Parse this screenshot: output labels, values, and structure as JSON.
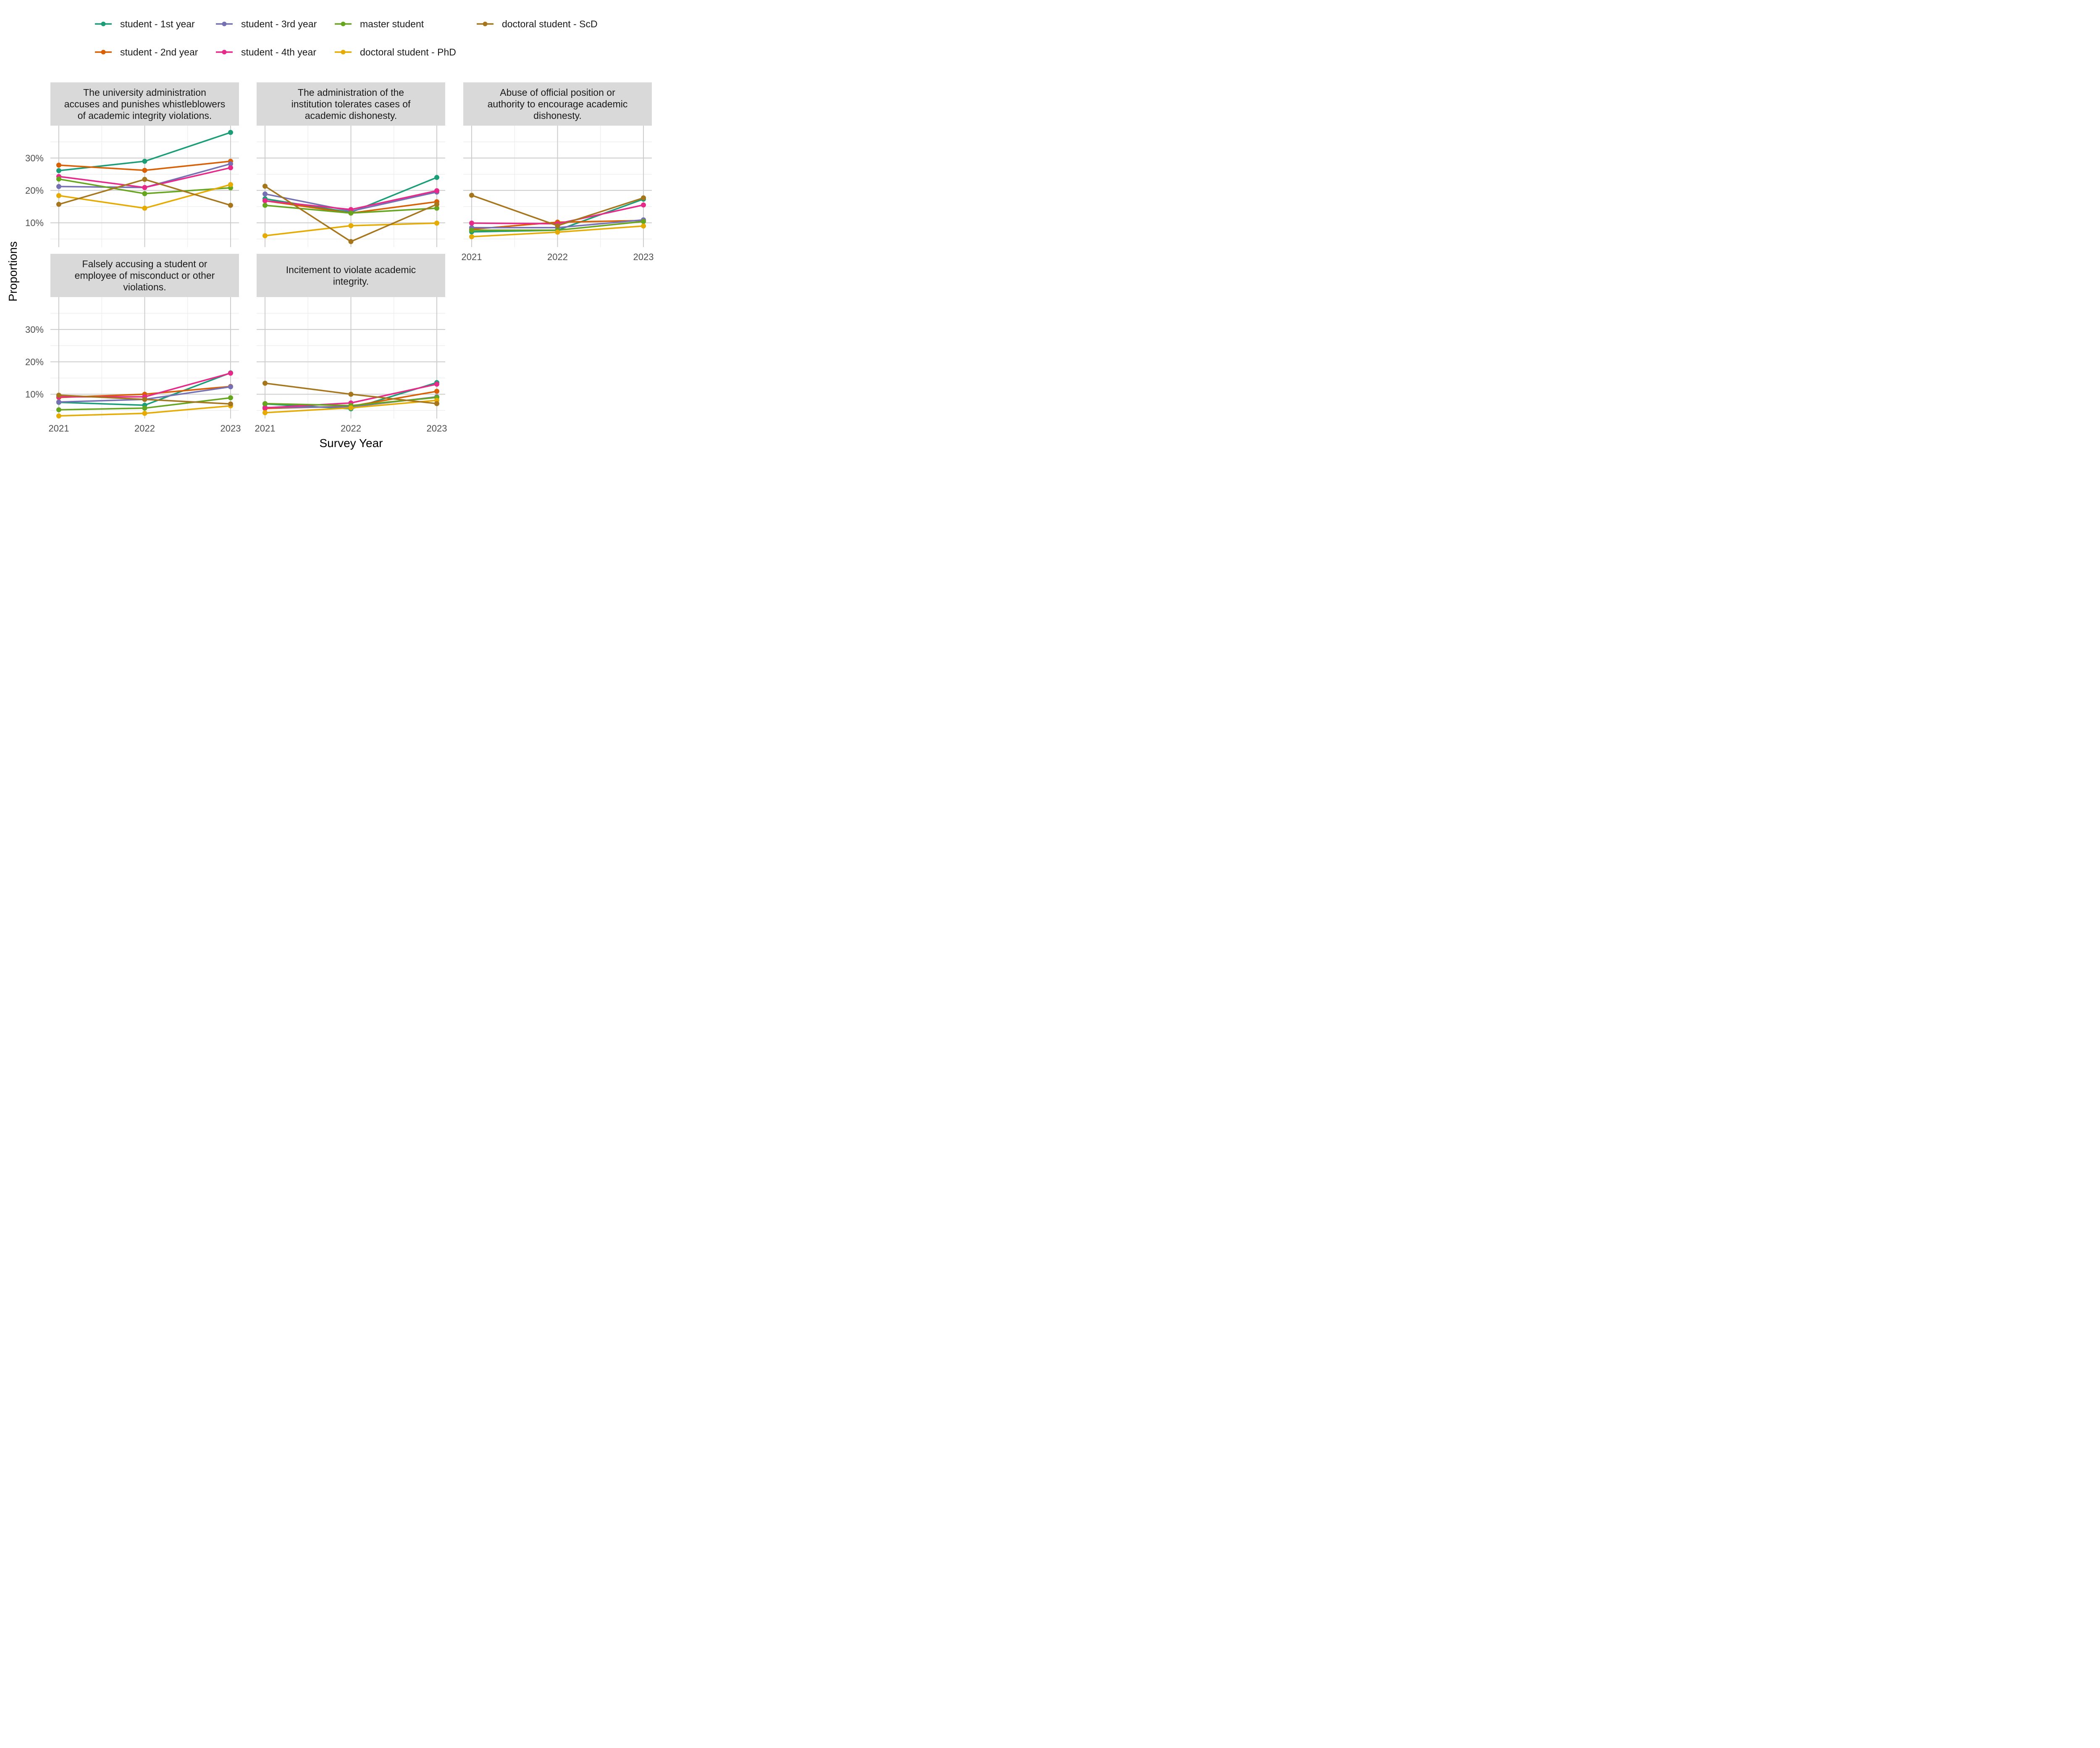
{
  "chart_data": {
    "type": "line",
    "xlabel": "Survey Year",
    "ylabel": "Proportions",
    "x": [
      2021,
      2022,
      2023
    ],
    "ylim": [
      0.025,
      0.4
    ],
    "y_ticks": [
      0.1,
      0.2,
      0.3
    ],
    "y_tick_labels": [
      "10%",
      "20%",
      "30%"
    ],
    "grid": true,
    "legend_position": "top",
    "legend": [
      {
        "name": "student - 1st year",
        "color": "#1B9E77"
      },
      {
        "name": "student - 3rd year",
        "color": "#7570B3"
      },
      {
        "name": "master student",
        "color": "#66A61E"
      },
      {
        "name": "doctoral student - ScD",
        "color": "#A6761D"
      },
      {
        "name": "student - 2nd year",
        "color": "#D95F02"
      },
      {
        "name": "student - 4th year",
        "color": "#E7298A"
      },
      {
        "name": "doctoral student - PhD",
        "color": "#E6AB02"
      }
    ],
    "panels": [
      {
        "title": "The university administration accuses and punishes whistleblowers of academic integrity violations.",
        "title_lines": [
          "The university administration",
          "accuses and punishes whistleblowers",
          "of academic integrity violations."
        ],
        "series": [
          {
            "name": "student - 1st year",
            "values": [
              0.261,
              0.29,
              0.379
            ]
          },
          {
            "name": "student - 2nd year",
            "values": [
              0.278,
              0.262,
              0.29
            ]
          },
          {
            "name": "student - 3rd year",
            "values": [
              0.212,
              0.209,
              0.282
            ]
          },
          {
            "name": "student - 4th year",
            "values": [
              0.243,
              0.209,
              0.27
            ]
          },
          {
            "name": "master student",
            "values": [
              0.235,
              0.19,
              0.208
            ]
          },
          {
            "name": "doctoral student - PhD",
            "values": [
              0.184,
              0.145,
              0.218
            ]
          },
          {
            "name": "doctoral student - ScD",
            "values": [
              0.157,
              0.234,
              0.154
            ]
          }
        ]
      },
      {
        "title": "The administration of the institution tolerates cases of academic dishonesty.",
        "title_lines": [
          "The administration of the",
          "institution tolerates cases of",
          "academic dishonesty."
        ],
        "series": [
          {
            "name": "student - 1st year",
            "values": [
              0.174,
              0.132,
              0.24
            ]
          },
          {
            "name": "student - 2nd year",
            "values": [
              0.168,
              0.13,
              0.165
            ]
          },
          {
            "name": "student - 3rd year",
            "values": [
              0.189,
              0.136,
              0.195
            ]
          },
          {
            "name": "student - 4th year",
            "values": [
              0.168,
              0.141,
              0.199
            ]
          },
          {
            "name": "master student",
            "values": [
              0.154,
              0.13,
              0.145
            ]
          },
          {
            "name": "doctoral student - PhD",
            "values": [
              0.06,
              0.091,
              0.099
            ]
          },
          {
            "name": "doctoral student - ScD",
            "values": [
              0.213,
              0.042,
              0.157
            ]
          }
        ]
      },
      {
        "title": "Abuse of official position or authority to encourage academic dishonesty.",
        "title_lines": [
          "Abuse of official position or",
          "authority to encourage academic",
          "dishonesty."
        ],
        "series": [
          {
            "name": "student - 1st year",
            "values": [
              0.072,
              0.077,
              0.173
            ]
          },
          {
            "name": "student - 2nd year",
            "values": [
              0.08,
              0.102,
              0.107
            ]
          },
          {
            "name": "student - 3rd year",
            "values": [
              0.085,
              0.085,
              0.109
            ]
          },
          {
            "name": "student - 4th year",
            "values": [
              0.099,
              0.097,
              0.155
            ]
          },
          {
            "name": "master student",
            "values": [
              0.077,
              0.077,
              0.104
            ]
          },
          {
            "name": "doctoral student - PhD",
            "values": [
              0.057,
              0.071,
              0.09
            ]
          },
          {
            "name": "doctoral student - ScD",
            "values": [
              0.185,
              0.091,
              0.177
            ]
          }
        ]
      },
      {
        "title": "Falsely accusing a student or employee of misconduct or other violations.",
        "title_lines": [
          "Falsely accusing a student or",
          "employee of misconduct or other",
          "violations."
        ],
        "series": [
          {
            "name": "student - 1st year",
            "values": [
              0.075,
              0.066,
              0.166
            ]
          },
          {
            "name": "student - 2nd year",
            "values": [
              0.09,
              0.1,
              0.124
            ]
          },
          {
            "name": "student - 3rd year",
            "values": [
              0.076,
              0.084,
              0.123
            ]
          },
          {
            "name": "student - 4th year",
            "values": [
              0.092,
              0.092,
              0.165
            ]
          },
          {
            "name": "master student",
            "values": [
              0.052,
              0.057,
              0.089
            ]
          },
          {
            "name": "doctoral student - PhD",
            "values": [
              0.033,
              0.041,
              0.064
            ]
          },
          {
            "name": "doctoral student - ScD",
            "values": [
              0.097,
              0.084,
              0.07
            ]
          }
        ]
      },
      {
        "title": "Incitement to violate academic integrity.",
        "title_lines": [
          "Incitement to violate academic",
          "integrity."
        ],
        "series": [
          {
            "name": "student - 1st year",
            "values": [
              0.07,
              0.055,
              0.136
            ]
          },
          {
            "name": "student - 2nd year",
            "values": [
              0.056,
              0.063,
              0.109
            ]
          },
          {
            "name": "student - 3rd year",
            "values": [
              0.059,
              0.061,
              0.092
            ]
          },
          {
            "name": "student - 4th year",
            "values": [
              0.058,
              0.073,
              0.131
            ]
          },
          {
            "name": "master student",
            "values": [
              0.071,
              0.065,
              0.09
            ]
          },
          {
            "name": "doctoral student - PhD",
            "values": [
              0.043,
              0.058,
              0.081
            ]
          },
          {
            "name": "doctoral student - ScD",
            "values": [
              0.134,
              0.1,
              0.071
            ]
          }
        ]
      }
    ]
  }
}
